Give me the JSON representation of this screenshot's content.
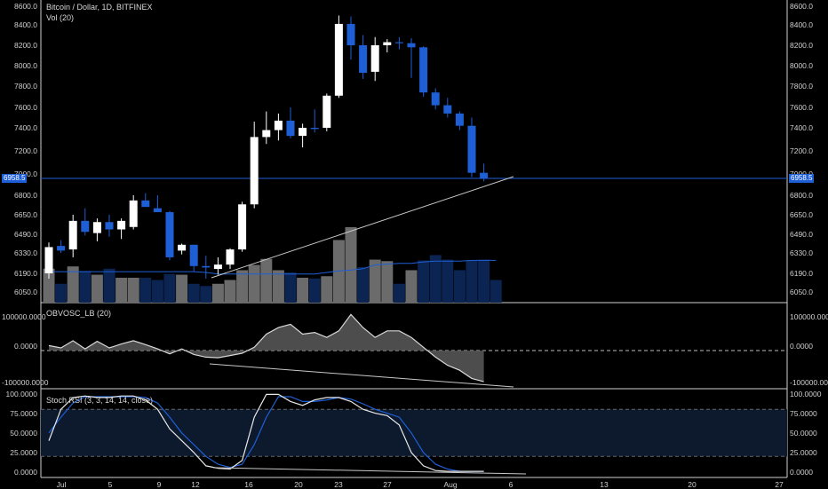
{
  "header": {
    "title": "Bitcoin / Dollar, 1D, BITFINEX",
    "vol_label": "Vol (20)",
    "obv_label": "OBVOSC_LB (20)",
    "stoch_label": "Stoch RSI (3, 3, 14, 14, close)"
  },
  "colors": {
    "up": "#ffffff",
    "down": "#1e5fd6",
    "vol_up": "#6b6b6b",
    "vol_down": "#0b2452",
    "vol_ma": "#1e5fd6",
    "trend": "#c8c8c8",
    "band": "#0d1a2e"
  },
  "price_tag": "6958.5",
  "chart_data": [
    {
      "type": "candlestick",
      "name": "price",
      "y_ticks": [
        "8600.0",
        "8400.0",
        "8200.0",
        "8000.0",
        "7800.0",
        "7600.0",
        "7400.0",
        "7200.0",
        "7000.0",
        "6800.0",
        "6650.0",
        "6490.0",
        "6330.0",
        "6190.0",
        "6050.0"
      ],
      "x_ticks": [
        "Jul",
        "5",
        "9",
        "12",
        "16",
        "20",
        "23",
        "27",
        "Aug",
        "6",
        "13",
        "20",
        "27"
      ],
      "current_price": 6958.5,
      "candles": [
        {
          "date": "Jun 30",
          "o": 6190,
          "h": 6420,
          "l": 6150,
          "c": 6380
        },
        {
          "date": "Jul 1",
          "o": 6390,
          "h": 6440,
          "l": 6330,
          "c": 6350
        },
        {
          "date": "Jul 2",
          "o": 6360,
          "h": 6650,
          "l": 6300,
          "c": 6600
        },
        {
          "date": "Jul 3",
          "o": 6600,
          "h": 6700,
          "l": 6480,
          "c": 6510
        },
        {
          "date": "Jul 4",
          "o": 6500,
          "h": 6620,
          "l": 6430,
          "c": 6590
        },
        {
          "date": "Jul 5",
          "o": 6590,
          "h": 6650,
          "l": 6470,
          "c": 6530
        },
        {
          "date": "Jul 6",
          "o": 6530,
          "h": 6620,
          "l": 6450,
          "c": 6600
        },
        {
          "date": "Jul 7",
          "o": 6550,
          "h": 6800,
          "l": 6530,
          "c": 6760
        },
        {
          "date": "Jul 8",
          "o": 6760,
          "h": 6820,
          "l": 6730,
          "c": 6710
        },
        {
          "date": "Jul 9",
          "o": 6700,
          "h": 6800,
          "l": 6680,
          "c": 6670
        },
        {
          "date": "Jul 10",
          "o": 6670,
          "h": 6680,
          "l": 6280,
          "c": 6300
        },
        {
          "date": "Jul 11",
          "o": 6350,
          "h": 6410,
          "l": 6320,
          "c": 6400
        },
        {
          "date": "Jul 12",
          "o": 6400,
          "h": 6400,
          "l": 6200,
          "c": 6240
        },
        {
          "date": "Jul 13",
          "o": 6240,
          "h": 6310,
          "l": 6150,
          "c": 6230
        },
        {
          "date": "Jul 14",
          "o": 6220,
          "h": 6300,
          "l": 6180,
          "c": 6250
        },
        {
          "date": "Jul 15",
          "o": 6250,
          "h": 6370,
          "l": 6220,
          "c": 6360
        },
        {
          "date": "Jul 16",
          "o": 6360,
          "h": 6750,
          "l": 6340,
          "c": 6730
        },
        {
          "date": "Jul 17",
          "o": 6730,
          "h": 7460,
          "l": 6700,
          "c": 7320
        },
        {
          "date": "Jul 18",
          "o": 7320,
          "h": 7560,
          "l": 7260,
          "c": 7380
        },
        {
          "date": "Jul 19",
          "o": 7380,
          "h": 7540,
          "l": 7290,
          "c": 7470
        },
        {
          "date": "Jul 20",
          "o": 7470,
          "h": 7600,
          "l": 7310,
          "c": 7330
        },
        {
          "date": "Jul 21",
          "o": 7330,
          "h": 7440,
          "l": 7230,
          "c": 7400
        },
        {
          "date": "Jul 22",
          "o": 7400,
          "h": 7580,
          "l": 7360,
          "c": 7390
        },
        {
          "date": "Jul 23",
          "o": 7400,
          "h": 7730,
          "l": 7370,
          "c": 7710
        },
        {
          "date": "Jul 24",
          "o": 7710,
          "h": 8500,
          "l": 7690,
          "c": 8410
        },
        {
          "date": "Jul 25",
          "o": 8410,
          "h": 8490,
          "l": 8060,
          "c": 8200
        },
        {
          "date": "Jul 26",
          "o": 8200,
          "h": 8300,
          "l": 7870,
          "c": 7930
        },
        {
          "date": "Jul 27",
          "o": 7940,
          "h": 8280,
          "l": 7850,
          "c": 8200
        },
        {
          "date": "Jul 28",
          "o": 8200,
          "h": 8260,
          "l": 8130,
          "c": 8230
        },
        {
          "date": "Jul 29",
          "o": 8230,
          "h": 8280,
          "l": 8160,
          "c": 8220
        },
        {
          "date": "Jul 30",
          "o": 8220,
          "h": 8270,
          "l": 7880,
          "c": 8180
        },
        {
          "date": "Jul 31",
          "o": 8180,
          "h": 8190,
          "l": 7700,
          "c": 7740
        },
        {
          "date": "Aug 1",
          "o": 7740,
          "h": 7780,
          "l": 7580,
          "c": 7620
        },
        {
          "date": "Aug 2",
          "o": 7620,
          "h": 7690,
          "l": 7500,
          "c": 7540
        },
        {
          "date": "Aug 3",
          "o": 7540,
          "h": 7560,
          "l": 7380,
          "c": 7420
        },
        {
          "date": "Aug 4",
          "o": 7420,
          "h": 7500,
          "l": 6970,
          "c": 7010
        },
        {
          "date": "Aug 5",
          "o": 7010,
          "h": 7090,
          "l": 6930,
          "c": 6960
        }
      ],
      "volume_relative": [
        0.45,
        0.25,
        0.48,
        0.42,
        0.37,
        0.45,
        0.33,
        0.33,
        0.33,
        0.3,
        0.38,
        0.37,
        0.25,
        0.22,
        0.25,
        0.3,
        0.43,
        0.5,
        0.58,
        0.43,
        0.4,
        0.33,
        0.32,
        0.35,
        0.83,
        1.0,
        0.47,
        0.57,
        0.55,
        0.25,
        0.43,
        0.56,
        0.63,
        0.57,
        0.43,
        0.56,
        0.57,
        0.3
      ],
      "volume_ma_relative": [
        0.41,
        0.41,
        0.41,
        0.41,
        0.41,
        0.41,
        0.41,
        0.41,
        0.41,
        0.41,
        0.41,
        0.41,
        0.41,
        0.4,
        0.38,
        0.38,
        0.38,
        0.38,
        0.38,
        0.38,
        0.38,
        0.38,
        0.38,
        0.4,
        0.42,
        0.43,
        0.45,
        0.5,
        0.51,
        0.52,
        0.52,
        0.54,
        0.55,
        0.55,
        0.55,
        0.56,
        0.56,
        0.56
      ],
      "volume_up": [
        true,
        false,
        true,
        false,
        true,
        false,
        true,
        true,
        false,
        false,
        false,
        true,
        false,
        false,
        true,
        true,
        true,
        true,
        true,
        true,
        false,
        true,
        false,
        true,
        true,
        true,
        false,
        true,
        true,
        false,
        true,
        false,
        false,
        false,
        false,
        false,
        false,
        false
      ],
      "trendline": [
        {
          "date": "Jul 13",
          "price": 6160
        },
        {
          "date": "Aug 6",
          "price": 6975
        }
      ]
    },
    {
      "type": "area",
      "name": "OBVOSC_LB (20)",
      "y_ticks": [
        "100000.0000",
        "0.0000",
        "-100000.0000"
      ],
      "values": [
        15000,
        8000,
        30000,
        5000,
        28000,
        8000,
        20000,
        30000,
        18000,
        5000,
        -10000,
        5000,
        -12000,
        -20000,
        -22000,
        -15000,
        -8000,
        10000,
        50000,
        70000,
        80000,
        50000,
        55000,
        40000,
        60000,
        110000,
        70000,
        40000,
        60000,
        60000,
        40000,
        10000,
        -20000,
        -45000,
        -60000,
        -85000,
        -95000
      ],
      "trendline": [
        {
          "date": "Jul 12",
          "value": -40000
        },
        {
          "date": "Aug 6",
          "value": -95000
        }
      ]
    },
    {
      "type": "line",
      "name": "Stoch RSI (3, 3, 14, 14, close)",
      "y_ticks": [
        "100.0000",
        "75.0000",
        "50.0000",
        "25.0000",
        "0.0000"
      ],
      "band": [
        20,
        80
      ],
      "k": [
        40,
        80,
        95,
        97,
        95,
        95,
        97,
        97,
        92,
        80,
        55,
        40,
        25,
        8,
        5,
        4,
        15,
        70,
        99,
        99,
        90,
        85,
        92,
        95,
        95,
        90,
        80,
        75,
        72,
        60,
        25,
        8,
        2,
        1,
        1,
        1,
        1
      ],
      "d": [
        50,
        70,
        88,
        96,
        96,
        96,
        96,
        96,
        95,
        88,
        70,
        50,
        35,
        20,
        10,
        6,
        10,
        35,
        70,
        96,
        96,
        90,
        90,
        92,
        95,
        93,
        87,
        80,
        75,
        70,
        50,
        25,
        10,
        4,
        1,
        1,
        1
      ],
      "trendline": [
        {
          "date": "Jul 13",
          "value": 5
        },
        {
          "date": "Aug 6",
          "value": -1
        }
      ]
    }
  ]
}
